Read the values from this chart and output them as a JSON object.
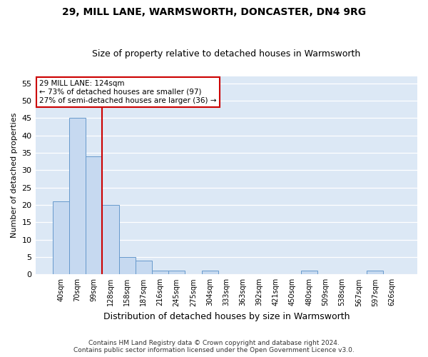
{
  "title1": "29, MILL LANE, WARMSWORTH, DONCASTER, DN4 9RG",
  "title2": "Size of property relative to detached houses in Warmsworth",
  "xlabel": "Distribution of detached houses by size in Warmsworth",
  "ylabel": "Number of detached properties",
  "footnote": "Contains HM Land Registry data © Crown copyright and database right 2024.\nContains public sector information licensed under the Open Government Licence v3.0.",
  "bin_labels": [
    "40sqm",
    "70sqm",
    "99sqm",
    "128sqm",
    "158sqm",
    "187sqm",
    "216sqm",
    "245sqm",
    "275sqm",
    "304sqm",
    "333sqm",
    "363sqm",
    "392sqm",
    "421sqm",
    "450sqm",
    "480sqm",
    "509sqm",
    "538sqm",
    "567sqm",
    "597sqm",
    "626sqm"
  ],
  "bar_values": [
    21,
    45,
    34,
    20,
    5,
    4,
    1,
    1,
    0,
    1,
    0,
    0,
    0,
    0,
    0,
    1,
    0,
    0,
    0,
    1,
    0
  ],
  "bar_color": "#c6d9f0",
  "bar_edge_color": "#6699cc",
  "ylim": [
    0,
    57
  ],
  "yticks": [
    0,
    5,
    10,
    15,
    20,
    25,
    30,
    35,
    40,
    45,
    50,
    55
  ],
  "vline_color": "#cc0000",
  "vline_bin_index": 2,
  "annotation_text": "29 MILL LANE: 124sqm\n← 73% of detached houses are smaller (97)\n27% of semi-detached houses are larger (36) →",
  "annotation_box_facecolor": "#ffffff",
  "annotation_box_edgecolor": "#cc0000",
  "fig_bg_color": "#ffffff",
  "plot_bg_color": "#dce8f5",
  "grid_color": "#ffffff",
  "title1_fontsize": 10,
  "title2_fontsize": 9,
  "footnote_fontsize": 6.5
}
